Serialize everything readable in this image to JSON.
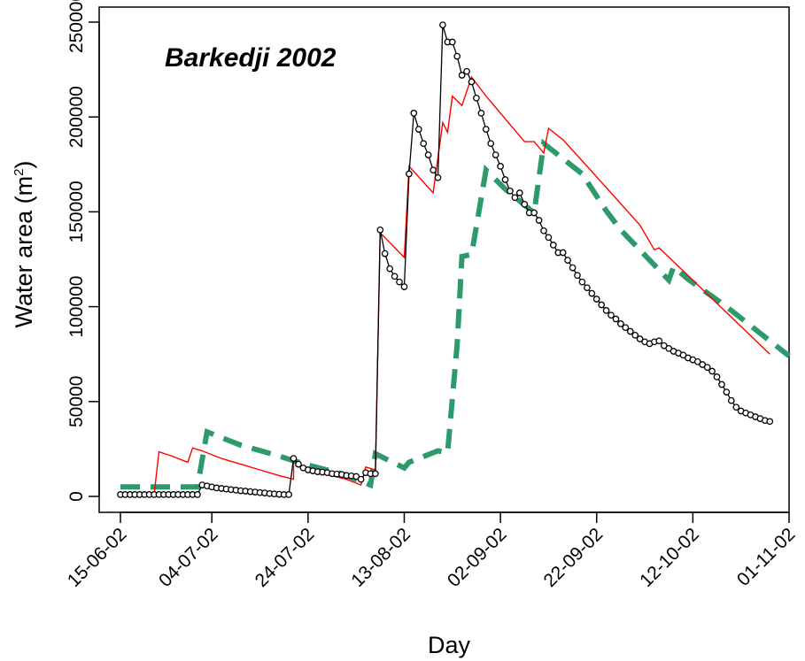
{
  "chart_data": {
    "type": "line",
    "title": "Barkedji 2002",
    "xlabel": "Day",
    "ylabel_main": "Water area (m",
    "ylabel_sup": "2",
    "ylabel_close": ")",
    "xlim": [
      "2002-06-15",
      "2002-11-01"
    ],
    "ylim": [
      0,
      250000
    ],
    "grid": false,
    "x_ticks": [
      {
        "date": "2002-06-15",
        "label": "15-06-02"
      },
      {
        "date": "2002-07-04",
        "label": "04-07-02"
      },
      {
        "date": "2002-07-24",
        "label": "24-07-02"
      },
      {
        "date": "2002-08-13",
        "label": "13-08-02"
      },
      {
        "date": "2002-09-02",
        "label": "02-09-02"
      },
      {
        "date": "2002-09-22",
        "label": "22-09-02"
      },
      {
        "date": "2002-10-12",
        "label": "12-10-02"
      },
      {
        "date": "2002-11-01",
        "label": "01-11-02"
      }
    ],
    "y_ticks": [
      {
        "value": 0,
        "label": "0"
      },
      {
        "value": 50000,
        "label": "50000"
      },
      {
        "value": 100000,
        "label": "100000"
      },
      {
        "value": 150000,
        "label": "150000"
      },
      {
        "value": 200000,
        "label": "200000"
      },
      {
        "value": 250000,
        "label": "250000"
      }
    ],
    "series": [
      {
        "style": "black line with open circle markers",
        "color": "#000000",
        "points": [
          [
            "2002-06-15",
            1000
          ],
          [
            "2002-06-16",
            1000
          ],
          [
            "2002-06-17",
            1000
          ],
          [
            "2002-06-18",
            1000
          ],
          [
            "2002-06-19",
            1000
          ],
          [
            "2002-06-20",
            1000
          ],
          [
            "2002-06-21",
            1000
          ],
          [
            "2002-06-22",
            1000
          ],
          [
            "2002-06-23",
            1000
          ],
          [
            "2002-06-24",
            1000
          ],
          [
            "2002-06-25",
            1000
          ],
          [
            "2002-06-26",
            1000
          ],
          [
            "2002-06-27",
            1000
          ],
          [
            "2002-06-28",
            1000
          ],
          [
            "2002-06-29",
            1000
          ],
          [
            "2002-06-30",
            1000
          ],
          [
            "2002-07-01",
            1000
          ],
          [
            "2002-07-02",
            6000
          ],
          [
            "2002-07-03",
            5500
          ],
          [
            "2002-07-04",
            5000
          ],
          [
            "2002-07-05",
            4500
          ],
          [
            "2002-07-06",
            4200
          ],
          [
            "2002-07-07",
            3900
          ],
          [
            "2002-07-08",
            3600
          ],
          [
            "2002-07-09",
            3300
          ],
          [
            "2002-07-10",
            3000
          ],
          [
            "2002-07-11",
            2800
          ],
          [
            "2002-07-12",
            2500
          ],
          [
            "2002-07-13",
            2300
          ],
          [
            "2002-07-14",
            2000
          ],
          [
            "2002-07-15",
            1800
          ],
          [
            "2002-07-16",
            1500
          ],
          [
            "2002-07-17",
            1300
          ],
          [
            "2002-07-18",
            1100
          ],
          [
            "2002-07-19",
            1000
          ],
          [
            "2002-07-20",
            1000
          ],
          [
            "2002-07-21",
            20000
          ],
          [
            "2002-07-22",
            17000
          ],
          [
            "2002-07-23",
            15000
          ],
          [
            "2002-07-24",
            14000
          ],
          [
            "2002-07-25",
            13500
          ],
          [
            "2002-07-26",
            13000
          ],
          [
            "2002-07-27",
            12800
          ],
          [
            "2002-07-28",
            12500
          ],
          [
            "2002-07-29",
            12000
          ],
          [
            "2002-07-30",
            11800
          ],
          [
            "2002-07-31",
            11500
          ],
          [
            "2002-08-01",
            11000
          ],
          [
            "2002-08-02",
            10800
          ],
          [
            "2002-08-03",
            10500
          ],
          [
            "2002-08-04",
            9000
          ],
          [
            "2002-08-05",
            12500
          ],
          [
            "2002-08-06",
            12000
          ],
          [
            "2002-08-07",
            12000
          ],
          [
            "2002-08-08",
            140500
          ],
          [
            "2002-08-09",
            128000
          ],
          [
            "2002-08-10",
            120000
          ],
          [
            "2002-08-11",
            116000
          ],
          [
            "2002-08-12",
            113000
          ],
          [
            "2002-08-13",
            110500
          ],
          [
            "2002-08-14",
            170000
          ],
          [
            "2002-08-15",
            202000
          ],
          [
            "2002-08-16",
            193500
          ],
          [
            "2002-08-17",
            186000
          ],
          [
            "2002-08-18",
            180000
          ],
          [
            "2002-08-19",
            172000
          ],
          [
            "2002-08-20",
            168000
          ],
          [
            "2002-08-21",
            248500
          ],
          [
            "2002-08-22",
            239500
          ],
          [
            "2002-08-23",
            239500
          ],
          [
            "2002-08-24",
            232000
          ],
          [
            "2002-08-25",
            222000
          ],
          [
            "2002-08-26",
            224000
          ],
          [
            "2002-08-27",
            218500
          ],
          [
            "2002-08-28",
            210000
          ],
          [
            "2002-08-29",
            202000
          ],
          [
            "2002-08-30",
            193500
          ],
          [
            "2002-08-31",
            186000
          ],
          [
            "2002-09-01",
            180000
          ],
          [
            "2002-09-02",
            174000
          ],
          [
            "2002-09-03",
            167000
          ],
          [
            "2002-09-04",
            161000
          ],
          [
            "2002-09-05",
            157500
          ],
          [
            "2002-09-06",
            160000
          ],
          [
            "2002-09-07",
            154000
          ],
          [
            "2002-09-08",
            149500
          ],
          [
            "2002-09-09",
            149500
          ],
          [
            "2002-09-10",
            145500
          ],
          [
            "2002-09-11",
            140000
          ],
          [
            "2002-09-12",
            136500
          ],
          [
            "2002-09-13",
            132500
          ],
          [
            "2002-09-14",
            128500
          ],
          [
            "2002-09-15",
            128500
          ],
          [
            "2002-09-16",
            124500
          ],
          [
            "2002-09-17",
            120500
          ],
          [
            "2002-09-18",
            116500
          ],
          [
            "2002-09-19",
            113000
          ],
          [
            "2002-09-20",
            110000
          ],
          [
            "2002-09-21",
            107000
          ],
          [
            "2002-09-22",
            104000
          ],
          [
            "2002-09-23",
            101000
          ],
          [
            "2002-09-24",
            98000
          ],
          [
            "2002-09-25",
            95500
          ],
          [
            "2002-09-26",
            93500
          ],
          [
            "2002-09-27",
            91000
          ],
          [
            "2002-09-28",
            89000
          ],
          [
            "2002-09-29",
            87000
          ],
          [
            "2002-09-30",
            85000
          ],
          [
            "2002-10-01",
            83000
          ],
          [
            "2002-10-02",
            81500
          ],
          [
            "2002-10-03",
            80500
          ],
          [
            "2002-10-04",
            81500
          ],
          [
            "2002-10-05",
            82000
          ],
          [
            "2002-10-06",
            79500
          ],
          [
            "2002-10-07",
            78000
          ],
          [
            "2002-10-08",
            76500
          ],
          [
            "2002-10-09",
            75500
          ],
          [
            "2002-10-10",
            74500
          ],
          [
            "2002-10-11",
            73000
          ],
          [
            "2002-10-12",
            72000
          ],
          [
            "2002-10-13",
            71000
          ],
          [
            "2002-10-14",
            69500
          ],
          [
            "2002-10-15",
            68000
          ],
          [
            "2002-10-16",
            66000
          ],
          [
            "2002-10-17",
            63000
          ],
          [
            "2002-10-18",
            59000
          ],
          [
            "2002-10-19",
            55000
          ],
          [
            "2002-10-20",
            50500
          ],
          [
            "2002-10-21",
            47000
          ],
          [
            "2002-10-22",
            45000
          ],
          [
            "2002-10-23",
            44000
          ],
          [
            "2002-10-24",
            43000
          ],
          [
            "2002-10-25",
            42000
          ],
          [
            "2002-10-26",
            41000
          ],
          [
            "2002-10-27",
            40000
          ],
          [
            "2002-10-28",
            39500
          ]
        ]
      },
      {
        "style": "thin red line",
        "color": "#ff0000",
        "points": [
          [
            "2002-06-15",
            1000
          ],
          [
            "2002-06-22",
            1000
          ],
          [
            "2002-06-23",
            23500
          ],
          [
            "2002-06-26",
            21000
          ],
          [
            "2002-06-28",
            19000
          ],
          [
            "2002-06-29",
            18000
          ],
          [
            "2002-06-30",
            25500
          ],
          [
            "2002-07-02",
            24000
          ],
          [
            "2002-07-06",
            20000
          ],
          [
            "2002-07-10",
            17000
          ],
          [
            "2002-07-14",
            14000
          ],
          [
            "2002-07-18",
            11000
          ],
          [
            "2002-07-21",
            9000
          ],
          [
            "2002-07-21",
            19000
          ],
          [
            "2002-07-24",
            14000
          ],
          [
            "2002-07-28",
            11500
          ],
          [
            "2002-08-01",
            9000
          ],
          [
            "2002-08-04",
            6000
          ],
          [
            "2002-08-05",
            15500
          ],
          [
            "2002-08-07",
            14000
          ],
          [
            "2002-08-08",
            139000
          ],
          [
            "2002-08-13",
            126000
          ],
          [
            "2002-08-14",
            174000
          ],
          [
            "2002-08-19",
            160000
          ],
          [
            "2002-08-21",
            197000
          ],
          [
            "2002-08-22",
            192000
          ],
          [
            "2002-08-23",
            211000
          ],
          [
            "2002-08-25",
            206000
          ],
          [
            "2002-08-27",
            221000
          ],
          [
            "2002-08-30",
            211000
          ],
          [
            "2002-09-04",
            196000
          ],
          [
            "2002-09-07",
            187000
          ],
          [
            "2002-09-09",
            187000
          ],
          [
            "2002-09-11",
            181000
          ],
          [
            "2002-09-12",
            194000
          ],
          [
            "2002-09-15",
            188000
          ],
          [
            "2002-09-20",
            174000
          ],
          [
            "2002-10-01",
            143000
          ],
          [
            "2002-10-04",
            130000
          ],
          [
            "2002-10-05",
            131000
          ],
          [
            "2002-10-28",
            75000
          ]
        ]
      },
      {
        "style": "thick dashed green line",
        "color": "#2e9a6b",
        "points": [
          [
            "2002-06-15",
            5000
          ],
          [
            "2002-06-21",
            5000
          ],
          [
            "2002-06-28",
            5000
          ],
          [
            "2002-07-01",
            5000
          ],
          [
            "2002-07-03",
            34000
          ],
          [
            "2002-07-10",
            27000
          ],
          [
            "2002-07-17",
            22000
          ],
          [
            "2002-07-24",
            16500
          ],
          [
            "2002-07-31",
            12000
          ],
          [
            "2002-08-06",
            6000
          ],
          [
            "2002-08-07",
            22500
          ],
          [
            "2002-08-13",
            15000
          ],
          [
            "2002-08-14",
            18000
          ],
          [
            "2002-08-20",
            24000
          ],
          [
            "2002-08-22",
            23000
          ],
          [
            "2002-08-24",
            80000
          ],
          [
            "2002-08-25",
            126500
          ],
          [
            "2002-08-27",
            127500
          ],
          [
            "2002-08-30",
            172000
          ],
          [
            "2002-09-03",
            162000
          ],
          [
            "2002-09-09",
            149500
          ],
          [
            "2002-09-11",
            186000
          ],
          [
            "2002-09-19",
            170000
          ],
          [
            "2002-09-24",
            150500
          ],
          [
            "2002-09-27",
            140500
          ],
          [
            "2002-10-07",
            114000
          ],
          [
            "2002-10-08",
            121000
          ],
          [
            "2002-10-11",
            114500
          ],
          [
            "2002-10-19",
            100000
          ],
          [
            "2002-10-26",
            86000
          ],
          [
            "2002-11-01",
            74000
          ]
        ]
      }
    ]
  }
}
